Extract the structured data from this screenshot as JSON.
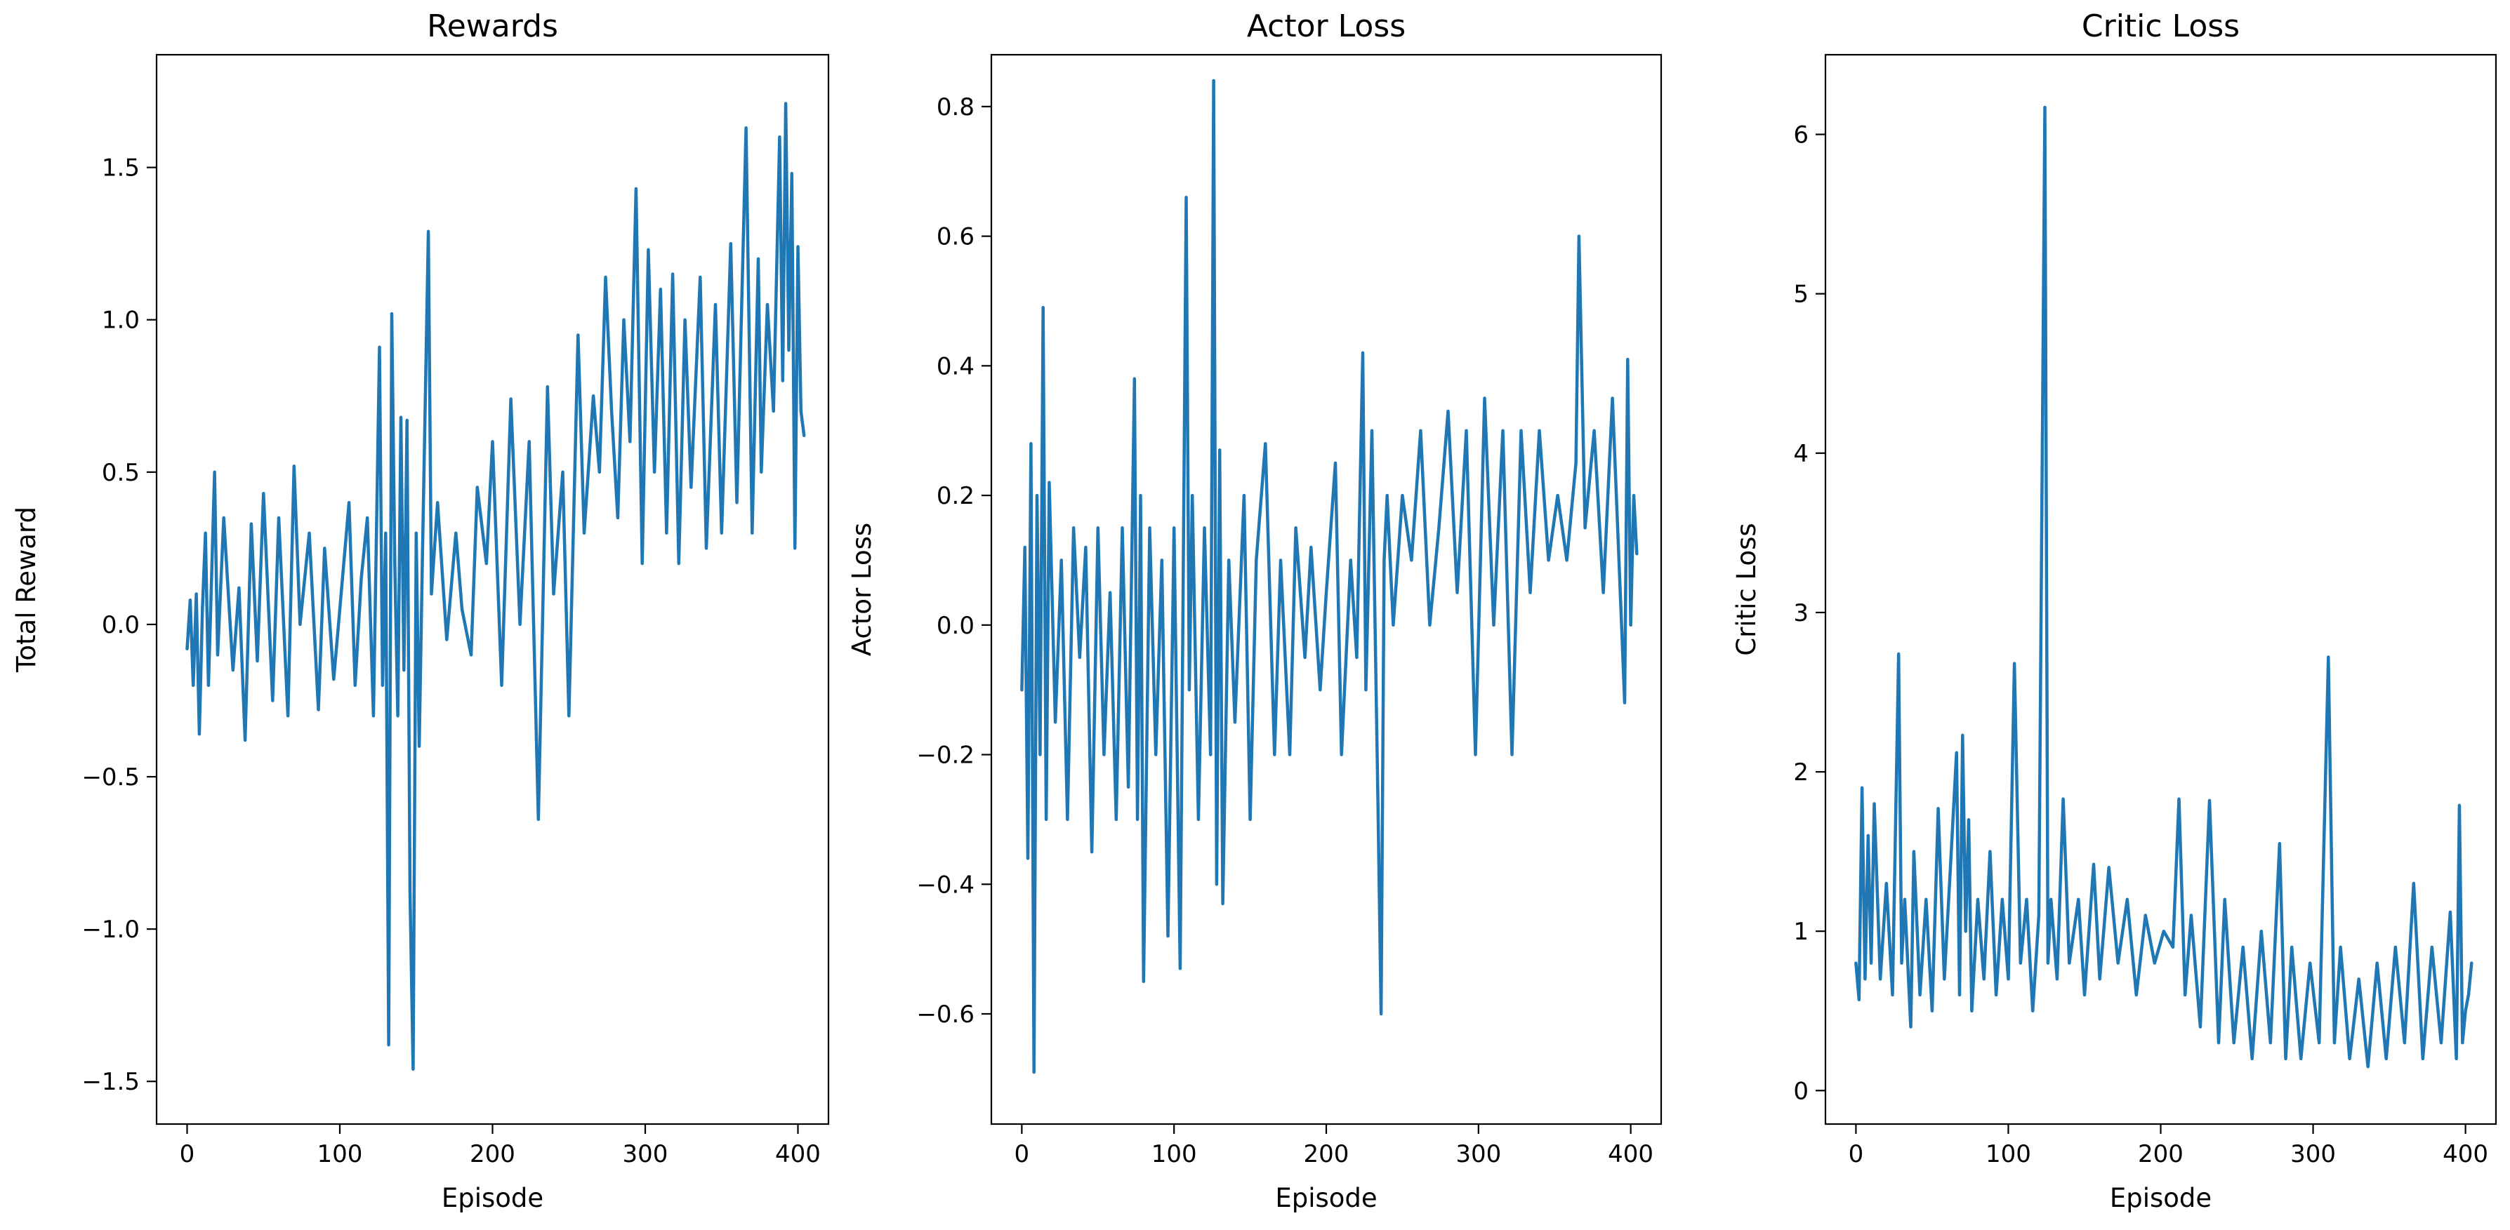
{
  "figure": {
    "background": "#ffffff",
    "line_color": "#1f77b4"
  },
  "chart_data": [
    {
      "type": "line",
      "title": "Rewards",
      "xlabel": "Episode",
      "ylabel": "Total Reward",
      "xlim": [
        -20,
        420
      ],
      "ylim": [
        -1.64,
        1.87
      ],
      "xticks": [
        0,
        100,
        200,
        300,
        400
      ],
      "xtick_labels": [
        "0",
        "100",
        "200",
        "300",
        "400"
      ],
      "yticks": [
        -1.5,
        -1.0,
        -0.5,
        0.0,
        0.5,
        1.0,
        1.5
      ],
      "ytick_labels": [
        "−1.5",
        "−1.0",
        "−0.5",
        "0.0",
        "0.5",
        "1.0",
        "1.5"
      ],
      "grid": false,
      "series": [
        {
          "x": [
            0,
            2,
            4,
            6,
            8,
            10,
            12,
            14,
            16,
            18,
            20,
            24,
            30,
            34,
            38,
            42,
            46,
            50,
            56,
            60,
            66,
            70,
            74,
            80,
            86,
            90,
            96,
            100,
            106,
            110,
            114,
            118,
            122,
            126,
            128,
            130,
            132,
            134,
            136,
            138,
            140,
            142,
            144,
            146,
            148,
            150,
            152,
            154,
            158,
            160,
            164,
            170,
            176,
            180,
            186,
            190,
            196,
            200,
            206,
            212,
            218,
            224,
            230,
            236,
            240,
            246,
            250,
            256,
            260,
            266,
            270,
            274,
            278,
            282,
            286,
            290,
            294,
            298,
            302,
            306,
            310,
            314,
            318,
            322,
            326,
            330,
            336,
            340,
            346,
            350,
            356,
            360,
            366,
            370,
            374,
            376,
            380,
            384,
            388,
            390,
            392,
            394,
            396,
            398,
            400,
            402,
            404
          ],
          "y": [
            -0.08,
            0.08,
            -0.2,
            0.1,
            -0.36,
            0.05,
            0.3,
            -0.2,
            0.15,
            0.5,
            -0.1,
            0.35,
            -0.15,
            0.12,
            -0.38,
            0.33,
            -0.12,
            0.43,
            -0.25,
            0.35,
            -0.3,
            0.52,
            0.0,
            0.3,
            -0.28,
            0.25,
            -0.18,
            0.05,
            0.4,
            -0.2,
            0.15,
            0.35,
            -0.3,
            0.91,
            -0.2,
            0.3,
            -1.38,
            1.02,
            0.2,
            -0.3,
            0.68,
            -0.15,
            0.67,
            -0.88,
            -1.46,
            0.3,
            -0.4,
            0.2,
            1.29,
            0.1,
            0.4,
            -0.05,
            0.3,
            0.05,
            -0.1,
            0.45,
            0.2,
            0.6,
            -0.2,
            0.74,
            0.0,
            0.6,
            -0.64,
            0.78,
            0.1,
            0.5,
            -0.3,
            0.95,
            0.3,
            0.75,
            0.5,
            1.14,
            0.7,
            0.35,
            1.0,
            0.6,
            1.43,
            0.2,
            1.23,
            0.5,
            1.1,
            0.3,
            1.15,
            0.2,
            1.0,
            0.45,
            1.14,
            0.25,
            1.05,
            0.3,
            1.25,
            0.4,
            1.63,
            0.3,
            1.2,
            0.5,
            1.05,
            0.7,
            1.6,
            0.8,
            1.71,
            0.9,
            1.48,
            0.25,
            1.24,
            0.7,
            0.62
          ]
        }
      ]
    },
    {
      "type": "line",
      "title": "Actor Loss",
      "xlabel": "Episode",
      "ylabel": "Actor Loss",
      "xlim": [
        -20,
        420
      ],
      "ylim": [
        -0.77,
        0.88
      ],
      "xticks": [
        0,
        100,
        200,
        300,
        400
      ],
      "xtick_labels": [
        "0",
        "100",
        "200",
        "300",
        "400"
      ],
      "yticks": [
        -0.6,
        -0.4,
        -0.2,
        0.0,
        0.2,
        0.4,
        0.6,
        0.8
      ],
      "ytick_labels": [
        "−0.6",
        "−0.4",
        "−0.2",
        "0.0",
        "0.2",
        "0.4",
        "0.6",
        "0.8"
      ],
      "grid": false,
      "series": [
        {
          "x": [
            0,
            2,
            4,
            6,
            8,
            10,
            12,
            14,
            16,
            18,
            22,
            26,
            30,
            34,
            38,
            42,
            46,
            50,
            54,
            58,
            62,
            66,
            70,
            74,
            76,
            78,
            80,
            84,
            88,
            92,
            96,
            100,
            104,
            108,
            110,
            112,
            116,
            120,
            124,
            126,
            128,
            130,
            132,
            136,
            140,
            146,
            150,
            154,
            160,
            166,
            170,
            176,
            180,
            186,
            190,
            196,
            200,
            206,
            210,
            216,
            220,
            224,
            226,
            230,
            234,
            236,
            238,
            240,
            244,
            250,
            256,
            262,
            268,
            274,
            280,
            286,
            292,
            298,
            304,
            310,
            316,
            322,
            328,
            334,
            340,
            346,
            352,
            358,
            364,
            366,
            370,
            376,
            382,
            388,
            394,
            396,
            398,
            400,
            402,
            404
          ],
          "y": [
            -0.1,
            0.12,
            -0.36,
            0.28,
            -0.69,
            0.2,
            -0.2,
            0.49,
            -0.3,
            0.22,
            -0.15,
            0.1,
            -0.3,
            0.15,
            -0.05,
            0.12,
            -0.35,
            0.15,
            -0.2,
            0.05,
            -0.3,
            0.15,
            -0.25,
            0.38,
            -0.3,
            0.2,
            -0.55,
            0.15,
            -0.2,
            0.1,
            -0.48,
            0.15,
            -0.53,
            0.66,
            -0.1,
            0.2,
            -0.3,
            0.15,
            -0.2,
            0.84,
            -0.4,
            0.27,
            -0.43,
            0.1,
            -0.15,
            0.2,
            -0.3,
            0.1,
            0.28,
            -0.2,
            0.1,
            -0.2,
            0.15,
            -0.05,
            0.12,
            -0.1,
            0.05,
            0.25,
            -0.2,
            0.1,
            -0.05,
            0.42,
            -0.1,
            0.3,
            -0.28,
            -0.6,
            0.1,
            0.2,
            0.0,
            0.2,
            0.1,
            0.3,
            0.0,
            0.15,
            0.33,
            0.05,
            0.3,
            -0.2,
            0.35,
            0.0,
            0.3,
            -0.2,
            0.3,
            0.05,
            0.3,
            0.1,
            0.2,
            0.1,
            0.25,
            0.6,
            0.15,
            0.3,
            0.05,
            0.35,
            0.0,
            -0.12,
            0.41,
            0.0,
            0.2,
            0.11
          ]
        }
      ]
    },
    {
      "type": "line",
      "title": "Critic Loss",
      "xlabel": "Episode",
      "ylabel": "Critic Loss",
      "xlim": [
        -20,
        420
      ],
      "ylim": [
        -0.21,
        6.5
      ],
      "xticks": [
        0,
        100,
        200,
        300,
        400
      ],
      "xtick_labels": [
        "0",
        "100",
        "200",
        "300",
        "400"
      ],
      "yticks": [
        0,
        1,
        2,
        3,
        4,
        5,
        6
      ],
      "ytick_labels": [
        "0",
        "1",
        "2",
        "3",
        "4",
        "5",
        "6"
      ],
      "grid": false,
      "series": [
        {
          "x": [
            0,
            2,
            4,
            6,
            8,
            10,
            12,
            16,
            20,
            24,
            28,
            30,
            32,
            36,
            38,
            42,
            46,
            50,
            54,
            58,
            62,
            66,
            68,
            70,
            72,
            74,
            76,
            80,
            84,
            88,
            92,
            96,
            100,
            104,
            108,
            112,
            116,
            120,
            124,
            126,
            128,
            132,
            136,
            140,
            146,
            150,
            156,
            160,
            166,
            172,
            178,
            184,
            190,
            196,
            202,
            208,
            212,
            216,
            220,
            226,
            232,
            238,
            242,
            248,
            254,
            260,
            266,
            272,
            278,
            282,
            286,
            292,
            298,
            304,
            310,
            314,
            318,
            324,
            330,
            336,
            342,
            348,
            354,
            360,
            366,
            372,
            378,
            384,
            390,
            394,
            396,
            398,
            400,
            402,
            404
          ],
          "y": [
            0.8,
            0.57,
            1.9,
            0.7,
            1.6,
            0.8,
            1.8,
            0.7,
            1.3,
            0.6,
            2.74,
            0.8,
            1.2,
            0.4,
            1.5,
            0.6,
            1.2,
            0.5,
            1.77,
            0.7,
            1.4,
            2.12,
            0.6,
            2.23,
            1.0,
            1.7,
            0.5,
            1.2,
            0.7,
            1.5,
            0.6,
            1.2,
            0.7,
            2.68,
            0.8,
            1.2,
            0.5,
            1.1,
            6.17,
            0.8,
            1.2,
            0.7,
            1.83,
            0.8,
            1.2,
            0.6,
            1.42,
            0.7,
            1.4,
            0.8,
            1.2,
            0.6,
            1.1,
            0.8,
            1.0,
            0.9,
            1.83,
            0.6,
            1.1,
            0.4,
            1.82,
            0.3,
            1.2,
            0.3,
            0.9,
            0.2,
            1.0,
            0.3,
            1.55,
            0.2,
            0.9,
            0.2,
            0.8,
            0.3,
            2.72,
            0.3,
            0.9,
            0.2,
            0.7,
            0.15,
            0.8,
            0.2,
            0.9,
            0.3,
            1.3,
            0.2,
            0.9,
            0.3,
            1.12,
            0.2,
            1.79,
            0.3,
            0.5,
            0.6,
            0.8
          ]
        }
      ]
    }
  ]
}
